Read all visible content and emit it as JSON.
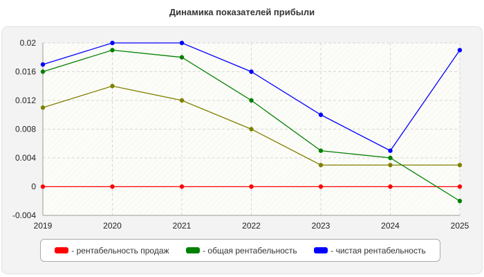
{
  "chart_data": {
    "type": "line",
    "title": "Динамика показателей прибыли",
    "categories": [
      "2019",
      "2020",
      "2021",
      "2022",
      "2023",
      "2024",
      "2025"
    ],
    "ylim": [
      -0.004,
      0.02
    ],
    "y_ticks": [
      "-0.004",
      "0",
      "0.004",
      "0.008",
      "0.012",
      "0.016",
      "0.02"
    ],
    "y_tick_values": [
      -0.004,
      0,
      0.004,
      0.008,
      0.012,
      0.016,
      0.02
    ],
    "grid": true,
    "legend_position": "bottom",
    "series": [
      {
        "name": "- рентабельность продаж",
        "color": "#ff0000",
        "values": [
          0,
          0,
          0,
          0,
          0,
          0,
          0
        ]
      },
      {
        "name": "- общая рентабельность",
        "color": "#008000",
        "values": [
          0.016,
          0.019,
          0.018,
          0.012,
          0.005,
          0.004,
          -0.002
        ]
      },
      {
        "name": "- чистая рентабельность",
        "color": "#0000ff",
        "values": [
          0.017,
          0.02,
          0.02,
          0.016,
          0.01,
          0.005,
          0.019
        ]
      },
      {
        "color": "#808000",
        "values": [
          0.011,
          0.014,
          0.012,
          0.008,
          0.003,
          0.003,
          0.003
        ]
      }
    ]
  }
}
